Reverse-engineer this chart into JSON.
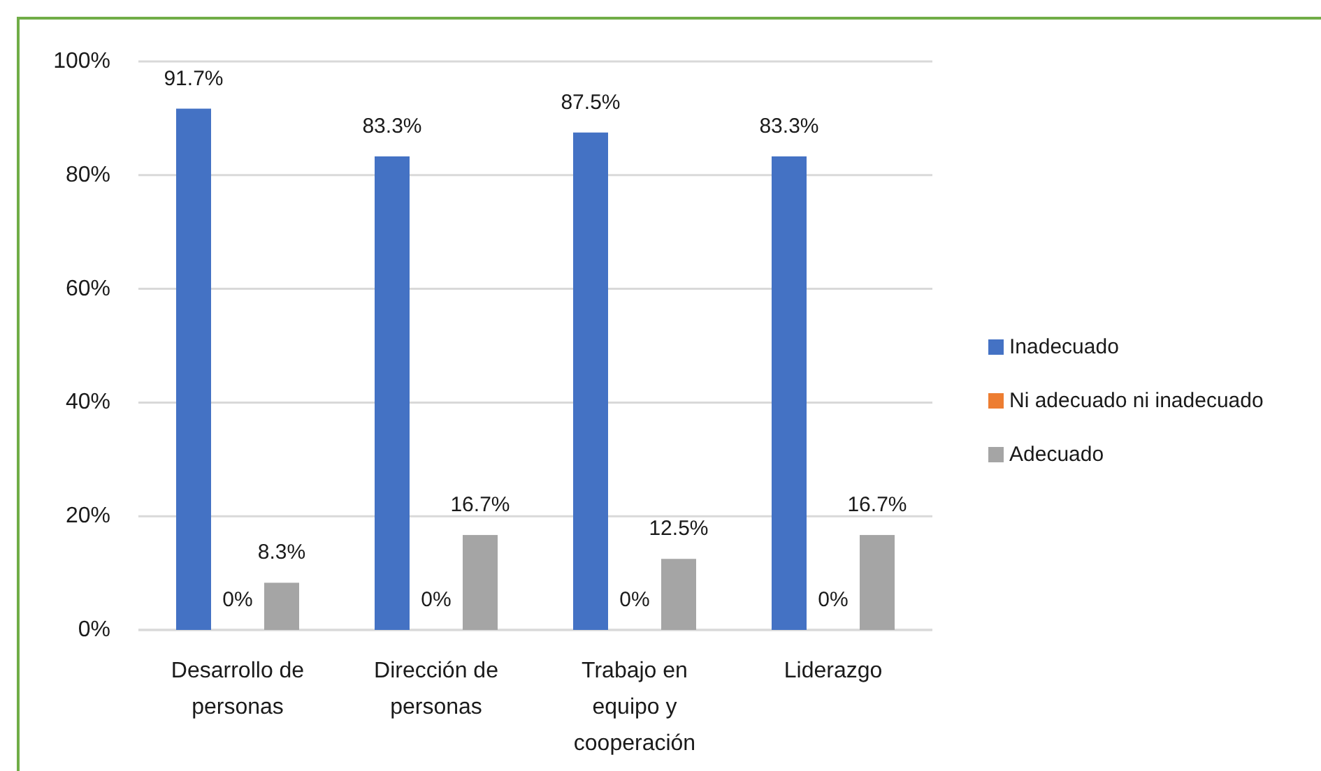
{
  "chart_data": {
    "type": "bar",
    "categories": [
      "Desarrollo de personas",
      "Dirección de personas",
      "Trabajo en equipo y cooperación",
      "Liderazgo"
    ],
    "series": [
      {
        "name": "Inadecuado",
        "color": "#4472c4",
        "values": [
          91.7,
          83.3,
          87.5,
          83.3
        ],
        "value_labels": [
          "91.7%",
          "83.3%",
          "87.5%",
          "83.3%"
        ]
      },
      {
        "name": "Ni adecuado ni inadecuado",
        "color": "#ed7d31",
        "values": [
          0,
          0,
          0,
          0
        ],
        "value_labels": [
          "0%",
          "0%",
          "0%",
          "0%"
        ]
      },
      {
        "name": "Adecuado",
        "color": "#a5a5a5",
        "values": [
          8.3,
          16.7,
          12.5,
          16.7
        ],
        "value_labels": [
          "8.3%",
          "16.7%",
          "12.5%",
          "16.7%"
        ]
      }
    ],
    "ylim": [
      0,
      100
    ],
    "yticks": [
      {
        "value": 0,
        "label": "0%"
      },
      {
        "value": 20,
        "label": "20%"
      },
      {
        "value": 40,
        "label": "40%"
      },
      {
        "value": 60,
        "label": "60%"
      },
      {
        "value": 80,
        "label": "80%"
      },
      {
        "value": 100,
        "label": "100%"
      }
    ],
    "grid": "y",
    "legend": "right"
  }
}
